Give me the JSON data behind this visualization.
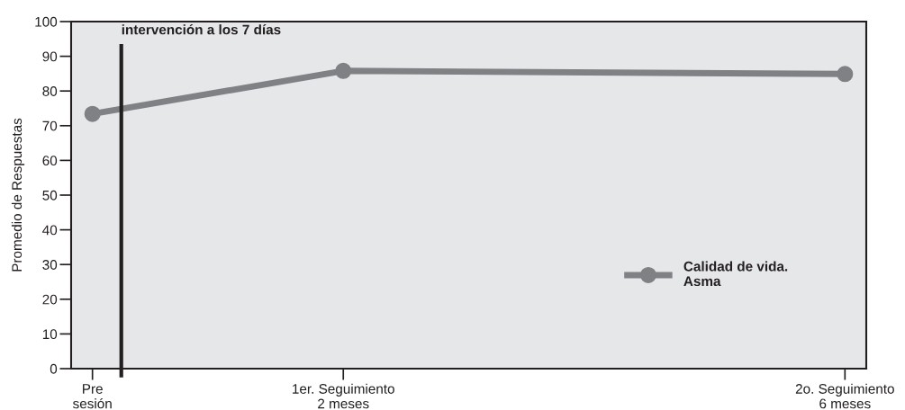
{
  "chart_data": {
    "type": "line",
    "ylabel": "Promedio de Respuestas",
    "categories": [
      "Pre\nsesión",
      null,
      "1er. Seguimiento\n2 meses",
      null,
      null,
      null,
      "2o. Seguimiento\n6 meses"
    ],
    "series": [
      {
        "name": "Calidad de vida.\nAsma",
        "color": "#808184",
        "x": [
          "Pre\nsesión",
          "1er. Seguimiento\n2 meses",
          "2o. Seguimiento\n6 meses"
        ],
        "values": [
          73.4,
          85.8,
          84.9
        ]
      }
    ],
    "ylim": [
      0,
      100
    ],
    "yticks": [
      0,
      10,
      20,
      30,
      40,
      50,
      60,
      70,
      80,
      90,
      100
    ],
    "annotations": [
      "intervención a los 7 días"
    ],
    "marker": "circle",
    "line_style": "solid",
    "grid": false,
    "legend": "right"
  }
}
